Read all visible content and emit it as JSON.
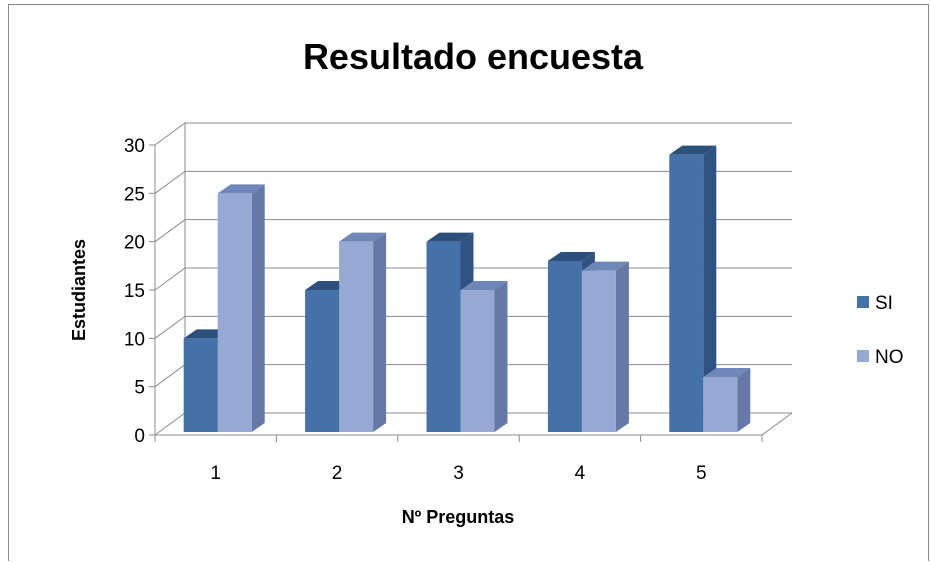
{
  "chart_data": {
    "type": "bar",
    "title": "Resultado encuesta",
    "xlabel": "Nº Preguntas",
    "ylabel": "Estudiantes",
    "categories": [
      "1",
      "2",
      "3",
      "4",
      "5"
    ],
    "series": [
      {
        "name": "SI",
        "values": [
          10,
          15,
          20,
          18,
          29
        ],
        "color": "#4472a8",
        "top_color": "#2d4f7c",
        "side_color": "#2f5280"
      },
      {
        "name": "NO",
        "values": [
          25,
          20,
          15,
          17,
          6
        ],
        "color": "#95a9d3",
        "top_color": "#6f87b8",
        "side_color": "#6479a5"
      }
    ],
    "ylim": [
      0,
      30
    ],
    "yticks": [
      0,
      5,
      10,
      15,
      20,
      25,
      30
    ],
    "grid": true,
    "legend_position": "right",
    "style": "3d-clustered-column"
  }
}
